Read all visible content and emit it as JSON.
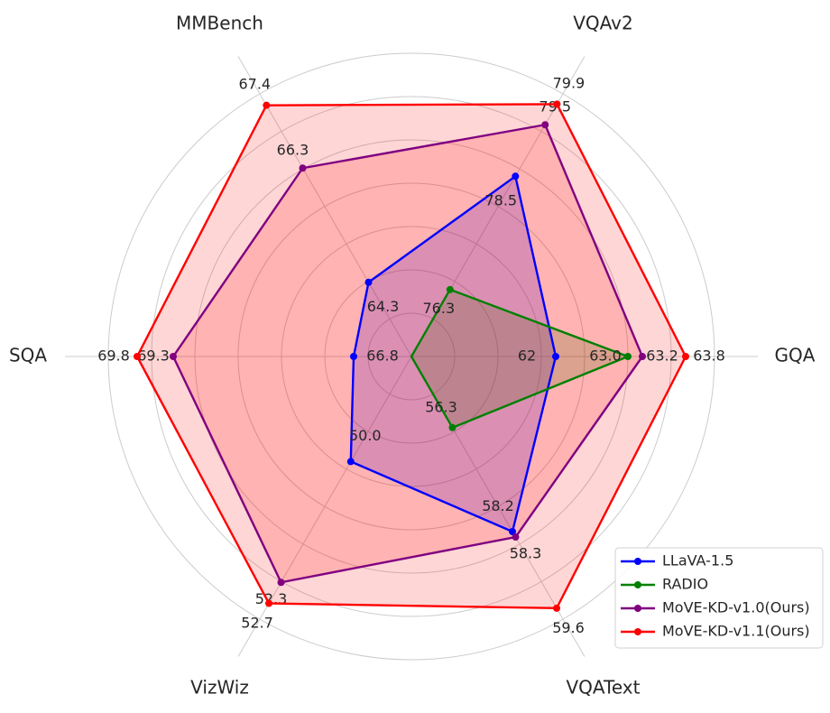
{
  "chart_data": {
    "type": "radar",
    "categories": [
      "GQA",
      "VQAv2",
      "MMBench",
      "SQA",
      "VizWiz",
      "VQAText"
    ],
    "ranges": [
      [
        60,
        64.2
      ],
      [
        75,
        80.1
      ],
      [
        63,
        67.6
      ],
      [
        66,
        70.2
      ],
      [
        48,
        53
      ],
      [
        55,
        59.8
      ]
    ],
    "series": [
      {
        "name": "LLaVA-1.5",
        "color": "#0000ff",
        "fill": "#0000ff",
        "values": [
          62,
          78.5,
          64.3,
          66.8,
          50.0,
          58.2
        ],
        "value_labels": [
          "62",
          "78.5",
          "64.3",
          "66.8",
          "50.0",
          "58.2"
        ]
      },
      {
        "name": "RADIO",
        "color": "#008000",
        "fill": "#008000",
        "values": [
          63.0,
          76.3,
          null,
          null,
          null,
          56.3
        ],
        "value_labels": [
          "63.0",
          "76.3",
          null,
          null,
          null,
          "56.3"
        ]
      },
      {
        "name": "MoVE-KD-v1.0(Ours)",
        "color": "#800080",
        "fill": "#ff0000",
        "values": [
          63.2,
          79.5,
          66.3,
          69.3,
          52.3,
          58.3
        ],
        "value_labels": [
          "63.2",
          "79.5",
          "66.3",
          "69.3",
          "52.3",
          "58.3"
        ]
      },
      {
        "name": "MoVE-KD-v1.1(Ours)",
        "color": "#ff0000",
        "fill": "#ff0000",
        "values": [
          63.8,
          79.9,
          67.4,
          69.8,
          52.7,
          59.6
        ],
        "value_labels": [
          "63.8",
          "79.9",
          "67.4",
          "69.8",
          "52.7",
          "59.6"
        ]
      }
    ],
    "legend": "lower right"
  }
}
